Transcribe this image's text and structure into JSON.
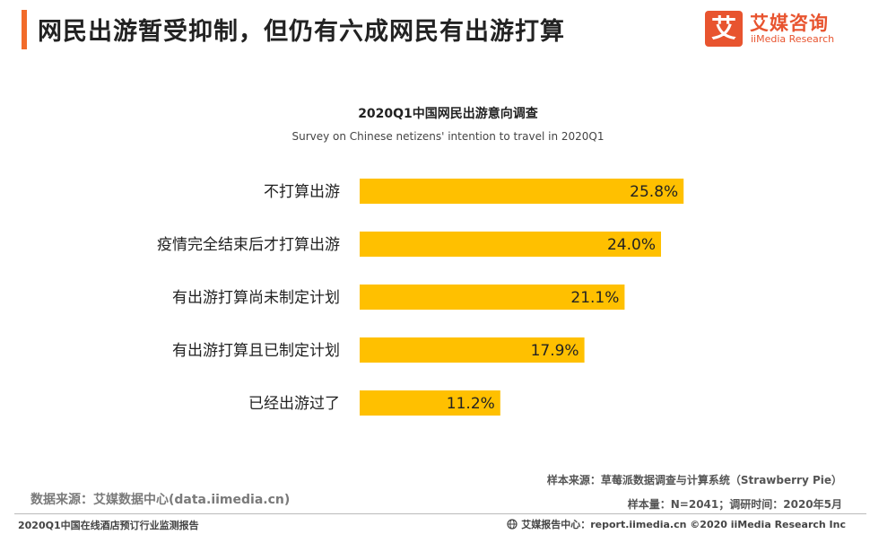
{
  "header": {
    "title": "网民出游暂受抑制，但仍有六成网民有出游打算"
  },
  "logo": {
    "mark": "艾",
    "name_cn": "艾媒咨询",
    "name_en": "iiMedia Research"
  },
  "colors": {
    "accent": "#f26b2a",
    "bar": "#ffc000",
    "logo": "#e8542f"
  },
  "chart_data": {
    "type": "bar",
    "orientation": "horizontal",
    "title": "2020Q1中国网民出游意向调查",
    "subtitle": "Survey on Chinese netizens' intention to travel in 2020Q1",
    "categories": [
      "不打算出游",
      "疫情完全结束后才打算出游",
      "有出游打算尚未制定计划",
      "有出游打算且已制定计划",
      "已经出游过了"
    ],
    "values": [
      25.8,
      24.0,
      21.1,
      17.9,
      11.2
    ],
    "value_labels": [
      "25.8%",
      "24.0%",
      "21.1%",
      "17.9%",
      "11.2%"
    ],
    "unit": "%",
    "grid": false,
    "legend": "none"
  },
  "footer": {
    "sample_source": "样本来源：草莓派数据调查与计算系统（Strawberry Pie）",
    "sample_size": "样本量：N=2041；调研时间：2020年5月",
    "data_source": "数据来源：艾媒数据中心(data.iimedia.cn)",
    "report_name": "2020Q1中国在线酒店预订行业监测报告",
    "copyright": "艾媒报告中心：report.iimedia.cn  ©2020  iiMedia Research  Inc"
  }
}
